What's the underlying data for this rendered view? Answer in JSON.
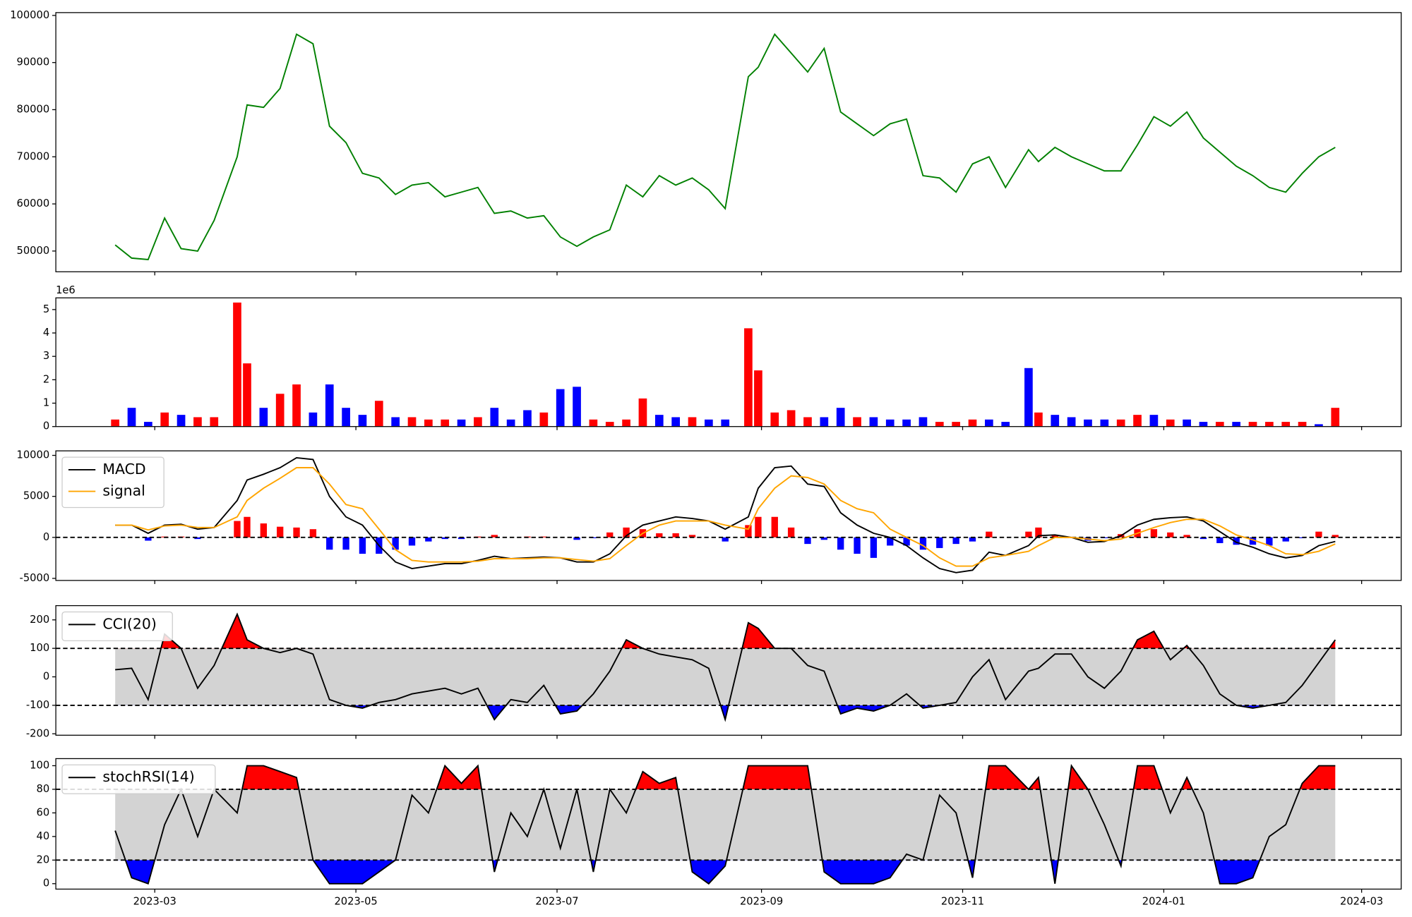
{
  "chart_data": [
    {
      "type": "line",
      "color": "green",
      "values": [
        51300,
        48500,
        48200,
        57000,
        50500,
        50000,
        56500,
        70000,
        81000,
        80500,
        84500,
        96000,
        94000,
        76500,
        73000,
        66500,
        65500,
        62000,
        64000,
        64500,
        61500,
        62500,
        63500,
        58000,
        58500,
        57000,
        57500,
        53000,
        51000,
        53000,
        54500,
        64000,
        61500,
        66000,
        64000,
        65500,
        63000,
        59000,
        87000,
        89000,
        96000,
        92000,
        88000,
        93000,
        79500,
        77000,
        74500,
        77000,
        78000,
        66000,
        65500,
        62500,
        68500,
        70000,
        63500,
        71500,
        69000,
        72000,
        70000,
        68500,
        67000,
        67000,
        72500,
        78500,
        76500,
        79500,
        74000,
        71000,
        68000,
        66000,
        63500,
        62500,
        66500,
        70000,
        72000
      ],
      "ylim": [
        45600,
        100600
      ],
      "yticks": [
        50000,
        60000,
        70000,
        80000,
        90000,
        100000
      ]
    },
    {
      "type": "bar",
      "values": [
        0.3,
        0.8,
        0.2,
        0.6,
        0.5,
        0.4,
        0.4,
        5.3,
        2.7,
        0.8,
        1.4,
        1.8,
        0.6,
        1.8,
        0.8,
        0.5,
        1.1,
        0.4,
        0.4,
        0.3,
        0.3,
        0.3,
        0.4,
        0.8,
        0.3,
        0.7,
        0.6,
        1.6,
        1.7,
        0.3,
        0.2,
        0.3,
        1.2,
        0.5,
        0.4,
        0.4,
        0.3,
        0.3,
        4.2,
        2.4,
        0.6,
        0.7,
        0.4,
        0.4,
        0.8,
        0.4,
        0.4,
        0.3,
        0.3,
        0.4,
        0.2,
        0.2,
        0.3,
        0.3,
        0.2,
        2.5,
        0.6,
        0.5,
        0.4,
        0.3,
        0.3,
        0.3,
        0.5,
        0.5,
        0.3,
        0.3,
        0.2,
        0.2,
        0.2,
        0.2,
        0.2,
        0.2,
        0.2,
        0.1,
        0.8
      ],
      "colors": [
        "red",
        "blue",
        "blue",
        "red",
        "blue",
        "red",
        "red",
        "red",
        "red",
        "blue",
        "red",
        "red",
        "blue",
        "blue",
        "blue",
        "blue",
        "red",
        "blue",
        "red",
        "red",
        "red",
        "blue",
        "red",
        "blue",
        "blue",
        "blue",
        "red",
        "blue",
        "blue",
        "red",
        "red",
        "red",
        "red",
        "blue",
        "blue",
        "red",
        "blue",
        "blue",
        "red",
        "red",
        "red",
        "red",
        "red",
        "blue",
        "blue",
        "red",
        "blue",
        "blue",
        "blue",
        "blue",
        "red",
        "red",
        "red",
        "blue",
        "blue",
        "blue",
        "red",
        "blue",
        "blue",
        "blue",
        "blue",
        "red",
        "red",
        "blue",
        "red",
        "blue",
        "blue",
        "red",
        "blue",
        "red",
        "red",
        "red",
        "red",
        "blue",
        "red"
      ],
      "ylim": [
        0,
        5.5
      ],
      "yticks": [
        0,
        1,
        2,
        3,
        4,
        5
      ],
      "offset_label": "1e6"
    },
    {
      "type": "macd",
      "series": [
        {
          "name": "MACD",
          "color": "black",
          "values": [
            1500,
            1500,
            500,
            1500,
            1600,
            1000,
            1200,
            4500,
            7000,
            7700,
            8500,
            9700,
            9500,
            5000,
            2500,
            1500,
            -1000,
            -3000,
            -3800,
            -3500,
            -3200,
            -3200,
            -2800,
            -2300,
            -2600,
            -2500,
            -2400,
            -2500,
            -3000,
            -3000,
            -2000,
            200,
            1500,
            2000,
            2500,
            2300,
            2000,
            1000,
            2500,
            6000,
            8500,
            8700,
            6500,
            6200,
            3000,
            1500,
            500,
            0,
            -1000,
            -2500,
            -3800,
            -4300,
            -4000,
            -1800,
            -2200,
            -1000,
            200,
            300,
            0,
            -600,
            -500,
            200,
            1500,
            2200,
            2400,
            2500,
            2000,
            700,
            -600,
            -1200,
            -2000,
            -2500,
            -2200,
            -1000,
            -500
          ]
        },
        {
          "name": "signal",
          "color": "orange",
          "values": [
            1500,
            1500,
            900,
            1400,
            1500,
            1200,
            1200,
            2500,
            4500,
            6000,
            7200,
            8500,
            8500,
            6500,
            4000,
            3500,
            1000,
            -1500,
            -2800,
            -3000,
            -3000,
            -3000,
            -2900,
            -2600,
            -2600,
            -2600,
            -2500,
            -2500,
            -2700,
            -2900,
            -2600,
            -1000,
            500,
            1500,
            2000,
            2000,
            2000,
            1500,
            1000,
            3500,
            6000,
            7500,
            7300,
            6500,
            4500,
            3500,
            3000,
            1000,
            0,
            -1000,
            -2500,
            -3500,
            -3500,
            -2500,
            -2200,
            -1700,
            -1000,
            0,
            0,
            -200,
            -400,
            -200,
            500,
            1200,
            1800,
            2200,
            2200,
            1400,
            300,
            -300,
            -1000,
            -2000,
            -2100,
            -1700,
            -800
          ]
        }
      ],
      "histogram": [
        0,
        0,
        -400,
        100,
        100,
        -200,
        0,
        2000,
        2500,
        1700,
        1300,
        1200,
        1000,
        -1500,
        -1500,
        -2000,
        -2000,
        -1500,
        -1000,
        -500,
        -200,
        -200,
        100,
        300,
        0,
        100,
        100,
        0,
        -300,
        -100,
        600,
        1200,
        1000,
        500,
        500,
        300,
        0,
        -500,
        1500,
        2500,
        2500,
        1200,
        -800,
        -300,
        -1500,
        -2000,
        -2500,
        -1000,
        -1000,
        -1500,
        -1300,
        -800,
        -500,
        700,
        0,
        700,
        1200,
        300,
        0,
        -400,
        -100,
        400,
        1000,
        1000,
        600,
        300,
        -200,
        -700,
        -900,
        -900,
        -1000,
        -500,
        -100,
        700,
        300
      ],
      "histogram_colors": [
        "red",
        "blue"
      ],
      "reference_lines": [
        0
      ],
      "ylim": [
        -5250,
        10550
      ],
      "yticks": [
        -5000,
        0,
        5000,
        10000
      ],
      "legend": "upper left"
    },
    {
      "type": "band",
      "series": [
        {
          "name": "CCI(20)",
          "color": "black",
          "values": [
            25,
            30,
            -80,
            150,
            100,
            -40,
            40,
            220,
            130,
            100,
            85,
            100,
            80,
            -80,
            -100,
            -110,
            -90,
            -80,
            -60,
            -50,
            -40,
            -60,
            -40,
            -150,
            -80,
            -90,
            -30,
            -130,
            -120,
            -60,
            20,
            130,
            100,
            80,
            70,
            60,
            30,
            -150,
            190,
            170,
            100,
            100,
            40,
            20,
            -130,
            -110,
            -120,
            -100,
            -60,
            -110,
            -100,
            -90,
            0,
            60,
            -80,
            20,
            30,
            80,
            80,
            0,
            -40,
            20,
            130,
            160,
            60,
            110,
            40,
            -60,
            -100,
            -110,
            -100,
            -90,
            -30,
            50,
            130
          ]
        }
      ],
      "band": [
        -100,
        100
      ],
      "band_color": "lightgray",
      "above_color": "red",
      "below_color": "blue",
      "ylim": [
        -205,
        250
      ],
      "yticks": [
        -200,
        -100,
        0,
        100,
        200
      ],
      "legend": "upper left"
    },
    {
      "type": "band",
      "series": [
        {
          "name": "stochRSI(14)",
          "color": "black",
          "values": [
            45,
            5,
            0,
            50,
            80,
            40,
            80,
            60,
            100,
            100,
            95,
            90,
            20,
            0,
            0,
            0,
            10,
            20,
            75,
            60,
            100,
            85,
            100,
            10,
            60,
            40,
            80,
            30,
            80,
            10,
            80,
            60,
            95,
            85,
            90,
            10,
            0,
            15,
            100,
            100,
            100,
            100,
            100,
            10,
            0,
            0,
            0,
            5,
            25,
            20,
            75,
            60,
            5,
            100,
            100,
            80,
            90,
            0,
            100,
            80,
            50,
            15,
            100,
            100,
            60,
            90,
            60,
            0,
            0,
            5,
            40,
            50,
            85,
            100,
            100
          ]
        }
      ],
      "band": [
        20,
        80
      ],
      "band_color": "lightgray",
      "above_color": "red",
      "below_color": "blue",
      "ylim": [
        -4.6,
        106
      ],
      "yticks": [
        0,
        20,
        40,
        60,
        80,
        100
      ],
      "legend": "upper left",
      "x": [
        -12,
        -7,
        -2,
        3,
        8,
        13,
        18,
        25,
        28,
        33,
        38,
        43,
        48,
        53,
        58,
        63,
        68,
        73,
        78,
        83,
        88,
        93,
        98,
        103,
        108,
        113,
        118,
        123,
        128,
        133,
        138,
        143,
        148,
        153,
        158,
        163,
        168,
        173,
        180,
        183,
        188,
        193,
        198,
        203,
        208,
        213,
        218,
        223,
        228,
        233,
        238,
        243,
        248,
        253,
        258,
        265,
        268,
        273,
        278,
        283,
        288,
        293,
        298,
        303,
        308,
        313,
        318,
        323,
        328,
        333,
        338,
        343,
        348,
        353,
        358
      ],
      "xlim": [
        -30,
        378
      ],
      "xticks": [
        {
          "value": 0,
          "label": "2023-03"
        },
        {
          "value": 61,
          "label": "2023-05"
        },
        {
          "value": 122,
          "label": "2023-07"
        },
        {
          "value": 184,
          "label": "2023-09"
        },
        {
          "value": 245,
          "label": "2023-11"
        },
        {
          "value": 306,
          "label": "2024-01"
        },
        {
          "value": 366,
          "label": "2024-03"
        }
      ]
    }
  ]
}
